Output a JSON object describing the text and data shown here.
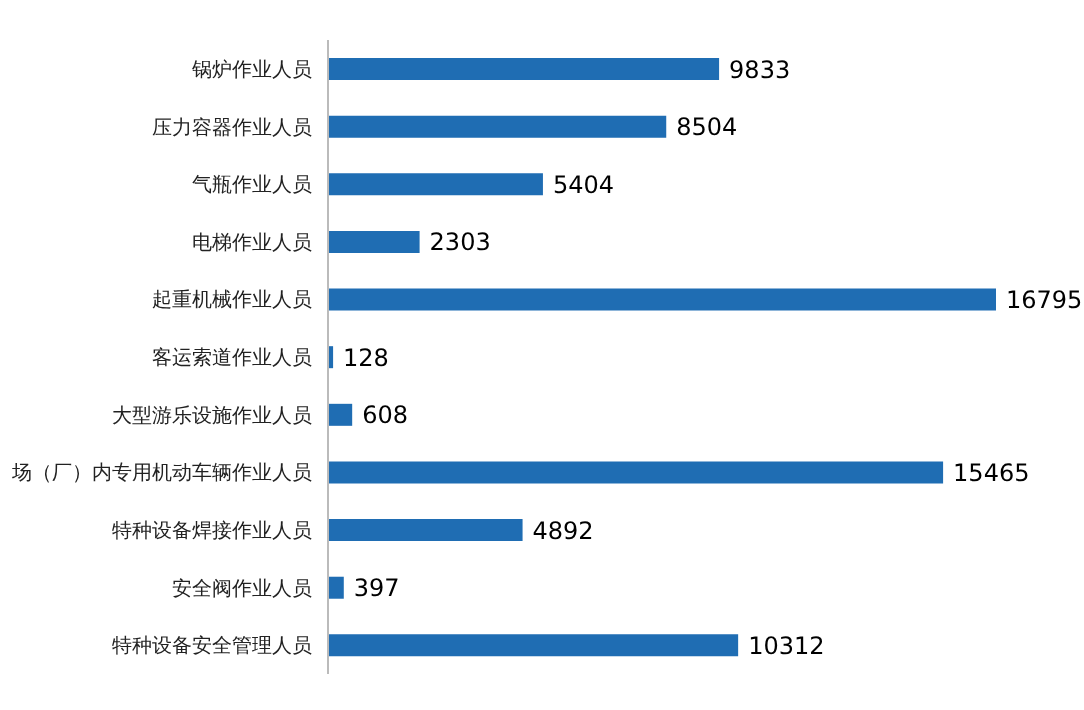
{
  "chart_data": {
    "type": "bar",
    "orientation": "horizontal",
    "categories": [
      "锅炉作业人员",
      "压力容器作业人员",
      "气瓶作业人员",
      "电梯作业人员",
      "起重机械作业人员",
      "客运索道作业人员",
      "大型游乐设施作业人员",
      "场（厂）内专用机动车辆作业人员",
      "特种设备焊接作业人员",
      "安全阀作业人员",
      "特种设备安全管理人员"
    ],
    "values": [
      9833,
      8504,
      5404,
      2303,
      16795,
      128,
      608,
      15465,
      4892,
      397,
      10312
    ],
    "color": "#1f6db3",
    "data_labels": true
  }
}
